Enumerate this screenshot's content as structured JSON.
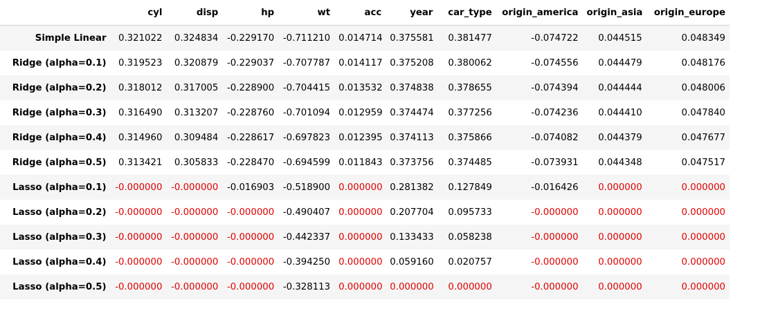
{
  "table": {
    "index_header": "",
    "columns": [
      "cyl",
      "disp",
      "hp",
      "wt",
      "acc",
      "year",
      "car_type",
      "origin_america",
      "origin_asia",
      "origin_europe"
    ],
    "rows": [
      {
        "label": "Simple Linear",
        "values": [
          "0.321022",
          "0.324834",
          "-0.229170",
          "-0.711210",
          "0.014714",
          "0.375581",
          "0.381477",
          "-0.074722",
          "0.044515",
          "0.048349"
        ]
      },
      {
        "label": "Ridge (alpha=0.1)",
        "values": [
          "0.319523",
          "0.320879",
          "-0.229037",
          "-0.707787",
          "0.014117",
          "0.375208",
          "0.380062",
          "-0.074556",
          "0.044479",
          "0.048176"
        ]
      },
      {
        "label": "Ridge (alpha=0.2)",
        "values": [
          "0.318012",
          "0.317005",
          "-0.228900",
          "-0.704415",
          "0.013532",
          "0.374838",
          "0.378655",
          "-0.074394",
          "0.044444",
          "0.048006"
        ]
      },
      {
        "label": "Ridge (alpha=0.3)",
        "values": [
          "0.316490",
          "0.313207",
          "-0.228760",
          "-0.701094",
          "0.012959",
          "0.374474",
          "0.377256",
          "-0.074236",
          "0.044410",
          "0.047840"
        ]
      },
      {
        "label": "Ridge (alpha=0.4)",
        "values": [
          "0.314960",
          "0.309484",
          "-0.228617",
          "-0.697823",
          "0.012395",
          "0.374113",
          "0.375866",
          "-0.074082",
          "0.044379",
          "0.047677"
        ]
      },
      {
        "label": "Ridge (alpha=0.5)",
        "values": [
          "0.313421",
          "0.305833",
          "-0.228470",
          "-0.694599",
          "0.011843",
          "0.373756",
          "0.374485",
          "-0.073931",
          "0.044348",
          "0.047517"
        ]
      },
      {
        "label": "Lasso (alpha=0.1)",
        "values": [
          "-0.000000",
          "-0.000000",
          "-0.016903",
          "-0.518900",
          "0.000000",
          "0.281382",
          "0.127849",
          "-0.016426",
          "0.000000",
          "0.000000"
        ]
      },
      {
        "label": "Lasso (alpha=0.2)",
        "values": [
          "-0.000000",
          "-0.000000",
          "-0.000000",
          "-0.490407",
          "0.000000",
          "0.207704",
          "0.095733",
          "-0.000000",
          "0.000000",
          "0.000000"
        ]
      },
      {
        "label": "Lasso (alpha=0.3)",
        "values": [
          "-0.000000",
          "-0.000000",
          "-0.000000",
          "-0.442337",
          "0.000000",
          "0.133433",
          "0.058238",
          "-0.000000",
          "0.000000",
          "0.000000"
        ]
      },
      {
        "label": "Lasso (alpha=0.4)",
        "values": [
          "-0.000000",
          "-0.000000",
          "-0.000000",
          "-0.394250",
          "0.000000",
          "0.059160",
          "0.020757",
          "-0.000000",
          "0.000000",
          "0.000000"
        ]
      },
      {
        "label": "Lasso (alpha=0.5)",
        "values": [
          "-0.000000",
          "-0.000000",
          "-0.000000",
          "-0.328113",
          "0.000000",
          "0.000000",
          "0.000000",
          "-0.000000",
          "0.000000",
          "0.000000"
        ]
      }
    ]
  },
  "colors": {
    "zero_highlight": "#e00000",
    "stripe": "#f5f5f5",
    "header_rule": "#cfcfcf"
  }
}
